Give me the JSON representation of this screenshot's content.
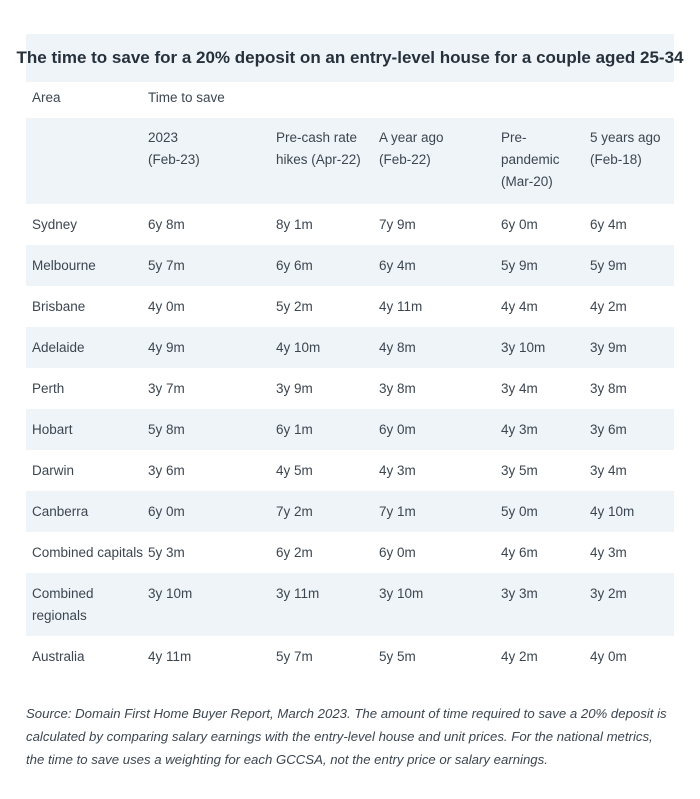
{
  "title": "The time to save for a 20% deposit on an entry-level house for a couple aged 25-34",
  "header": {
    "area_label": "Area",
    "group_label": "Time to save",
    "periods": [
      [
        "2023",
        "(Feb-23)"
      ],
      [
        "Pre-cash rate",
        "hikes (Apr-22)"
      ],
      [
        "A year ago",
        "(Feb-22)"
      ],
      [
        "Pre-",
        "pandemic",
        "(Mar-20)"
      ],
      [
        "5 years ago",
        "(Feb-18)"
      ]
    ]
  },
  "rows": [
    {
      "area": [
        "Sydney"
      ],
      "values": [
        "6y 8m",
        "8y 1m",
        "7y 9m",
        "6y 0m",
        "6y 4m"
      ]
    },
    {
      "area": [
        "Melbourne"
      ],
      "values": [
        "5y 7m",
        "6y 6m",
        "6y 4m",
        "5y 9m",
        "5y 9m"
      ]
    },
    {
      "area": [
        "Brisbane"
      ],
      "values": [
        "4y 0m",
        "5y 2m",
        "4y 11m",
        "4y 4m",
        "4y 2m"
      ]
    },
    {
      "area": [
        "Adelaide"
      ],
      "values": [
        "4y 9m",
        "4y 10m",
        "4y 8m",
        "3y 10m",
        "3y 9m"
      ]
    },
    {
      "area": [
        "Perth"
      ],
      "values": [
        "3y 7m",
        "3y 9m",
        "3y 8m",
        "3y 4m",
        "3y 8m"
      ]
    },
    {
      "area": [
        "Hobart"
      ],
      "values": [
        "5y 8m",
        "6y 1m",
        "6y 0m",
        "4y 3m",
        "3y 6m"
      ]
    },
    {
      "area": [
        "Darwin"
      ],
      "values": [
        "3y 6m",
        "4y 5m",
        "4y 3m",
        "3y 5m",
        "3y 4m"
      ]
    },
    {
      "area": [
        "Canberra"
      ],
      "values": [
        "6y 0m",
        "7y 2m",
        "7y 1m",
        "5y 0m",
        "4y 10m"
      ]
    },
    {
      "area": [
        "Combined capitals"
      ],
      "values": [
        "5y 3m",
        "6y 2m",
        "6y 0m",
        "4y 6m",
        "4y 3m"
      ]
    },
    {
      "area": [
        "Combined",
        "regionals"
      ],
      "values": [
        "3y 10m",
        "3y 11m",
        "3y 10m",
        "3y 3m",
        "3y 2m"
      ]
    },
    {
      "area": [
        "Australia"
      ],
      "values": [
        "4y 11m",
        "5y 7m",
        "5y 5m",
        "4y 2m",
        "4y 0m"
      ]
    }
  ],
  "source_lines": [
    "Source: Domain First Home Buyer Report, March 2023. The amount of time required to save a 20% deposit is",
    "calculated by comparing salary earnings with the entry-level house and unit prices. For the national metrics,",
    "the time to save uses a weighting for each GCCSA, not the entry price or salary earnings."
  ]
}
